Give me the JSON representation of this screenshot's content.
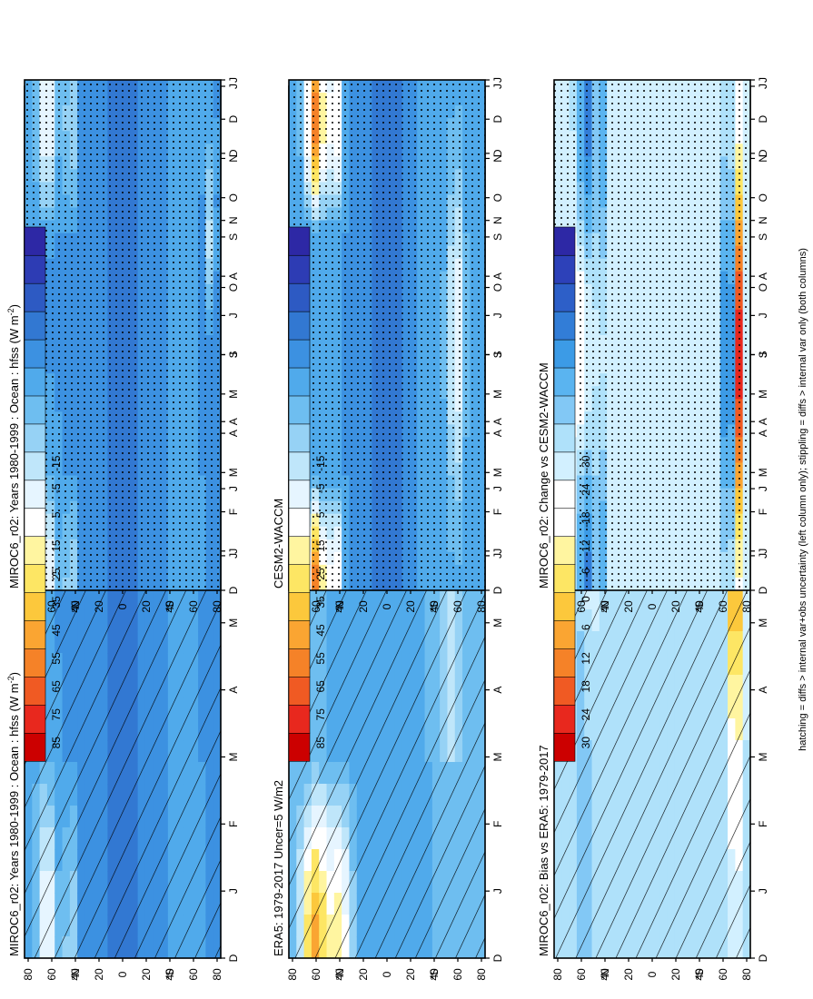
{
  "chart_data": {
    "type": "heatmap",
    "footer": "hatching = diffs > internal var+obs uncertainty (left column only); stippling = diffs > internal var only (both columns)",
    "x_ticks": [
      "D",
      "J",
      "F",
      "M",
      "A",
      "M",
      "J",
      "J",
      "A",
      "S",
      "O",
      "N",
      "D",
      "J"
    ],
    "y_ticks": [
      "80",
      "60",
      "40",
      "20",
      "0",
      "20",
      "40",
      "60",
      "80"
    ],
    "y_hemisphere_labels": [
      "°N",
      "°S"
    ],
    "colorbars": {
      "abs": {
        "ticks": [
          "85",
          "75",
          "65",
          "55",
          "45",
          "35",
          "25",
          "15",
          "5",
          "-5",
          "-15"
        ],
        "colors": [
          "#cc0000",
          "#e8281e",
          "#f05a23",
          "#f58228",
          "#faa532",
          "#fcc83c",
          "#fde664",
          "#fff5a0",
          "#ffffff",
          "#e6f5ff",
          "#bfe6fa",
          "#96d2f5",
          "#6ebef0",
          "#50aaeb",
          "#3c91e1",
          "#3278d2",
          "#2d5ac3",
          "#2d3cb4",
          "#2d28a5"
        ]
      },
      "diff": {
        "ticks": [
          "30",
          "24",
          "18",
          "12",
          "6",
          "0",
          "-6",
          "-12",
          "-18",
          "-24",
          "-30"
        ],
        "colors": [
          "#cc0000",
          "#e8281e",
          "#f05a23",
          "#f58228",
          "#faa532",
          "#fcc83c",
          "#fde664",
          "#fff5a0",
          "#ffffff",
          "#ffffff",
          "#d2f0ff",
          "#afe1fa",
          "#82c8f5",
          "#5ab4f0",
          "#3c9be6",
          "#327dd7",
          "#2d5fc8",
          "#2d41b9",
          "#2d28a5"
        ]
      }
    },
    "panels": [
      {
        "id": "model-left",
        "title": "MIROC6_r02: Years 1980-1999 : Ocean : hfss (W m",
        "superscript": "-2",
        "title_end": ")",
        "scale": "abs",
        "overlay": "hatching",
        "field": "model"
      },
      {
        "id": "obs-left",
        "title": "ERA5: 1979-2017 Uncer=5 W/m2",
        "superscript": "",
        "title_end": "",
        "scale": "abs",
        "overlay": "hatching",
        "field": "obs"
      },
      {
        "id": "bias-left",
        "title": "MIROC6_r02: Bias vs ERA5: 1979-2017",
        "superscript": "",
        "title_end": "",
        "scale": "diff",
        "overlay": "hatching",
        "field": "bias"
      },
      {
        "id": "model-right",
        "title": "MIROC6_r02: Years 1980-1999 : Ocean : hfss (W m",
        "superscript": "-2",
        "title_end": ")",
        "scale": "abs",
        "overlay": "stipple",
        "field": "model"
      },
      {
        "id": "compare-right",
        "title": "CESM2-WACCM",
        "superscript": "",
        "title_end": "",
        "scale": "abs",
        "overlay": "stipple",
        "field": "cesm"
      },
      {
        "id": "change-right",
        "title": "MIROC6_r02: Change vs CESM2-WACCM",
        "superscript": "",
        "title_end": "",
        "scale": "diff",
        "overlay": "stipple",
        "field": "change"
      }
    ]
  }
}
